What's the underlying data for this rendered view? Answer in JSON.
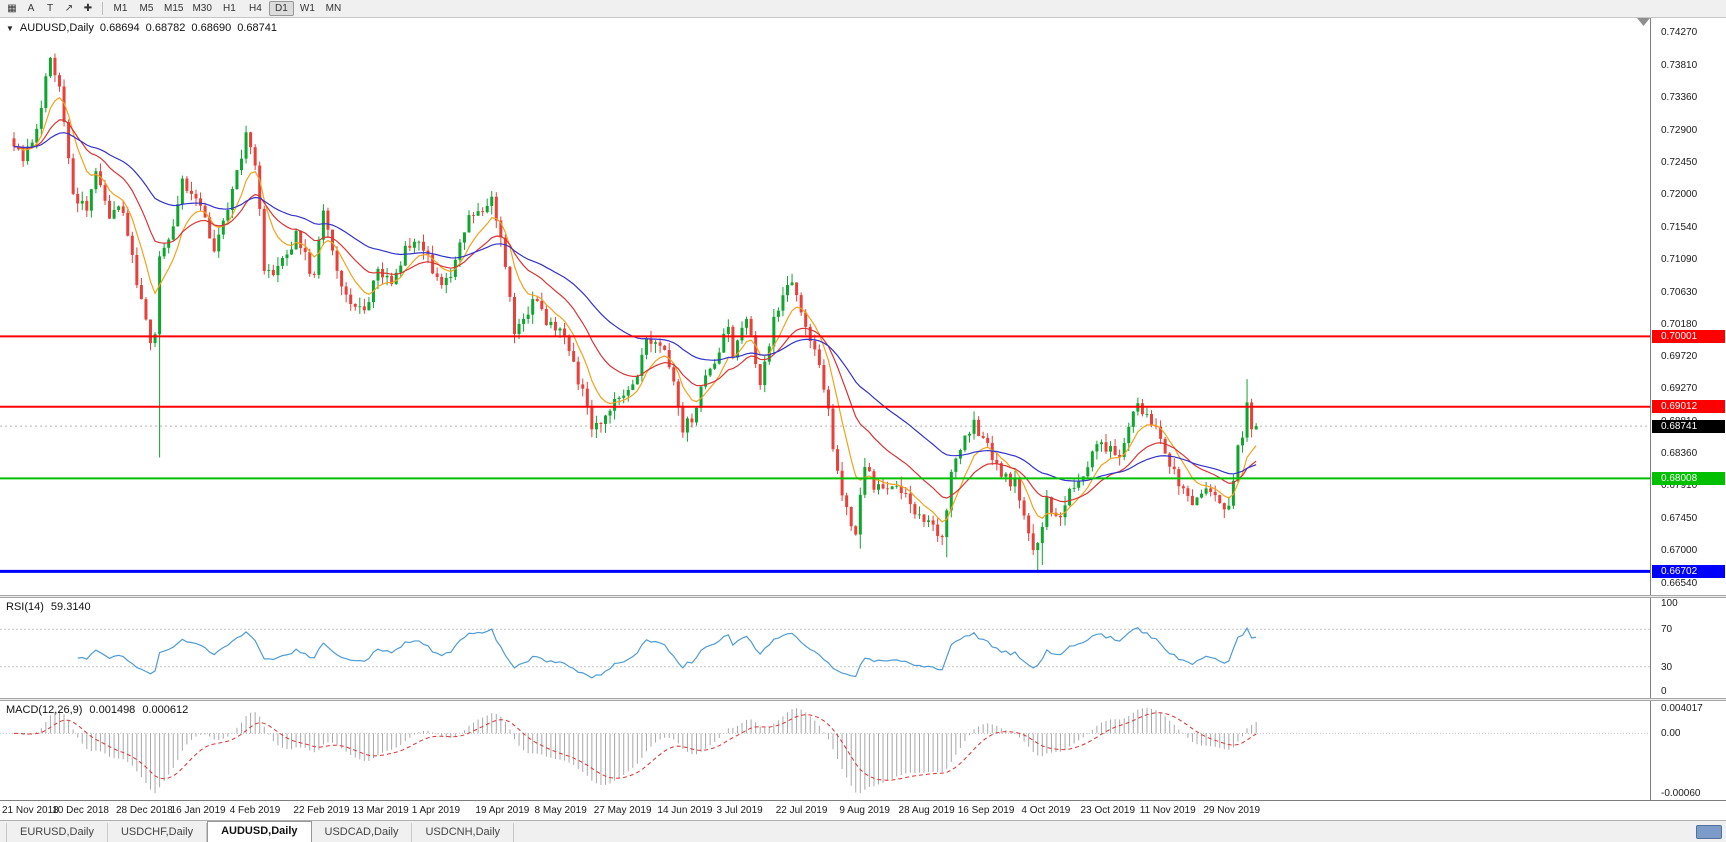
{
  "toolbar": {
    "icons": [
      {
        "name": "chart-grid-icon",
        "glyph": "▦"
      },
      {
        "name": "cursor-icon",
        "glyph": "A"
      },
      {
        "name": "text-tool-icon",
        "glyph": "T"
      },
      {
        "name": "trendline-icon",
        "glyph": "↗"
      },
      {
        "name": "crosshair-icon",
        "glyph": "✚"
      }
    ],
    "timeframes": [
      "M1",
      "M5",
      "M15",
      "M30",
      "H1",
      "H4",
      "D1",
      "W1",
      "MN"
    ],
    "active_timeframe": "D1"
  },
  "chart": {
    "dropdown_icon": "▼",
    "symbol_label": "AUDUSD,Daily",
    "open": "0.68694",
    "high": "0.68782",
    "low": "0.68690",
    "close": "0.68741"
  },
  "chart_data": {
    "type": "candlestick",
    "symbol": "AUDUSD",
    "timeframe": "Daily",
    "candle_count": 274,
    "colors": {
      "bull": "#0FA52E",
      "bear": "#E8403A"
    },
    "price_axis": {
      "labels": [
        "0.74270",
        "0.73810",
        "0.73360",
        "0.72900",
        "0.72450",
        "0.72000",
        "0.71540",
        "0.71090",
        "0.70630",
        "0.70180",
        "0.69720",
        "0.69270",
        "0.68810",
        "0.68360",
        "0.67910",
        "0.67450",
        "0.67000",
        "0.66540"
      ],
      "max_visible": 0.7447,
      "min_visible": 0.6637
    },
    "date_axis": [
      {
        "label": "21 Nov 2018",
        "i": 2
      },
      {
        "label": "10 Dec 2018",
        "i": 15
      },
      {
        "label": "28 Dec 2018",
        "i": 29
      },
      {
        "label": "16 Jan 2019",
        "i": 41
      },
      {
        "label": "4 Feb 2019",
        "i": 54
      },
      {
        "label": "22 Feb 2019",
        "i": 68
      },
      {
        "label": "13 Mar 2019",
        "i": 81
      },
      {
        "label": "1 Apr 2019",
        "i": 94
      },
      {
        "label": "19 Apr 2019",
        "i": 108
      },
      {
        "label": "8 May 2019",
        "i": 121
      },
      {
        "label": "27 May 2019",
        "i": 134
      },
      {
        "label": "14 Jun 2019",
        "i": 148
      },
      {
        "label": "3 Jul 2019",
        "i": 161
      },
      {
        "label": "22 Jul 2019",
        "i": 174
      },
      {
        "label": "9 Aug 2019",
        "i": 188
      },
      {
        "label": "28 Aug 2019",
        "i": 201
      },
      {
        "label": "16 Sep 2019",
        "i": 214
      },
      {
        "label": "4 Oct 2019",
        "i": 228
      },
      {
        "label": "23 Oct 2019",
        "i": 241
      },
      {
        "label": "11 Nov 2019",
        "i": 254
      },
      {
        "label": "29 Nov 2019",
        "i": 268
      }
    ],
    "price_path": [
      [
        0,
        0.7278
      ],
      [
        3,
        0.7242
      ],
      [
        6,
        0.73
      ],
      [
        9,
        0.7388
      ],
      [
        11,
        0.7352
      ],
      [
        14,
        0.7205
      ],
      [
        17,
        0.7178
      ],
      [
        19,
        0.7228
      ],
      [
        22,
        0.717
      ],
      [
        25,
        0.7182
      ],
      [
        28,
        0.7075
      ],
      [
        30,
        0.7032
      ],
      [
        31,
        0.6992
      ],
      [
        32,
        0.7
      ],
      [
        33,
        0.7112
      ],
      [
        36,
        0.7158
      ],
      [
        38,
        0.7218
      ],
      [
        41,
        0.72
      ],
      [
        43,
        0.7162
      ],
      [
        45,
        0.7122
      ],
      [
        48,
        0.7178
      ],
      [
        51,
        0.7252
      ],
      [
        52,
        0.729
      ],
      [
        54,
        0.7244
      ],
      [
        56,
        0.7098
      ],
      [
        58,
        0.7092
      ],
      [
        61,
        0.7108
      ],
      [
        63,
        0.714
      ],
      [
        67,
        0.7082
      ],
      [
        69,
        0.7172
      ],
      [
        72,
        0.709
      ],
      [
        75,
        0.7042
      ],
      [
        78,
        0.7038
      ],
      [
        81,
        0.7092
      ],
      [
        84,
        0.7072
      ],
      [
        87,
        0.7118
      ],
      [
        90,
        0.7132
      ],
      [
        93,
        0.7092
      ],
      [
        95,
        0.7068
      ],
      [
        98,
        0.7105
      ],
      [
        101,
        0.7162
      ],
      [
        104,
        0.7178
      ],
      [
        106,
        0.7196
      ],
      [
        108,
        0.7148
      ],
      [
        111,
        0.7012
      ],
      [
        113,
        0.7018
      ],
      [
        115,
        0.7052
      ],
      [
        118,
        0.7022
      ],
      [
        121,
        0.7002
      ],
      [
        123,
        0.6985
      ],
      [
        125,
        0.6942
      ],
      [
        128,
        0.6872
      ],
      [
        131,
        0.6888
      ],
      [
        134,
        0.6922
      ],
      [
        137,
        0.6932
      ],
      [
        140,
        0.6988
      ],
      [
        143,
        0.6992
      ],
      [
        145,
        0.6955
      ],
      [
        148,
        0.6872
      ],
      [
        150,
        0.688
      ],
      [
        152,
        0.6925
      ],
      [
        155,
        0.6962
      ],
      [
        158,
        0.7012
      ],
      [
        159,
        0.6968
      ],
      [
        162,
        0.7028
      ],
      [
        165,
        0.6928
      ],
      [
        168,
        0.7022
      ],
      [
        171,
        0.7068
      ],
      [
        172,
        0.7078
      ],
      [
        174,
        0.7042
      ],
      [
        177,
        0.6978
      ],
      [
        180,
        0.6898
      ],
      [
        182,
        0.6802
      ],
      [
        184,
        0.6758
      ],
      [
        186,
        0.6728
      ],
      [
        188,
        0.6812
      ],
      [
        190,
        0.6792
      ],
      [
        193,
        0.6778
      ],
      [
        196,
        0.6788
      ],
      [
        199,
        0.6758
      ],
      [
        202,
        0.6742
      ],
      [
        205,
        0.6722
      ],
      [
        207,
        0.6808
      ],
      [
        210,
        0.6862
      ],
      [
        212,
        0.6878
      ],
      [
        215,
        0.6842
      ],
      [
        218,
        0.6812
      ],
      [
        221,
        0.6792
      ],
      [
        224,
        0.6722
      ],
      [
        225,
        0.6702
      ],
      [
        226,
        0.6712
      ],
      [
        228,
        0.6768
      ],
      [
        231,
        0.6742
      ],
      [
        233,
        0.6788
      ],
      [
        236,
        0.6812
      ],
      [
        239,
        0.6852
      ],
      [
        242,
        0.6838
      ],
      [
        244,
        0.6822
      ],
      [
        247,
        0.6892
      ],
      [
        248,
        0.6912
      ],
      [
        250,
        0.6888
      ],
      [
        253,
        0.6858
      ],
      [
        255,
        0.6822
      ],
      [
        257,
        0.6788
      ],
      [
        260,
        0.6772
      ],
      [
        262,
        0.6788
      ],
      [
        265,
        0.6772
      ],
      [
        268,
        0.676
      ],
      [
        270,
        0.6842
      ],
      [
        271,
        0.6858
      ],
      [
        272,
        0.6902
      ],
      [
        273,
        0.68741
      ]
    ],
    "wick_overrides": {
      "32": 0.683,
      "186": 0.6702,
      "205": 0.669,
      "225": 0.6672,
      "226": 0.6679
    },
    "high_overrides": {
      "271": 0.694
    },
    "last_candle": {
      "o": 0.68694,
      "h": 0.68782,
      "l": 0.6869,
      "c": 0.68741
    },
    "hlines": [
      {
        "value": 0.70001,
        "label": "0.70001",
        "color": "#FF0000",
        "width": 2
      },
      {
        "value": 0.69012,
        "label": "0.69012",
        "color": "#FF0000",
        "width": 2
      },
      {
        "value": 0.68008,
        "label": "0.68008",
        "color": "#00C000",
        "width": 2
      },
      {
        "value": 0.66702,
        "label": "0.66702",
        "color": "#0000FF",
        "width": 3
      }
    ],
    "current_price": {
      "value": 0.68741,
      "label": "0.68741",
      "box_color": "#000000"
    },
    "mas": [
      {
        "period": 8,
        "color": "#F5A11C"
      },
      {
        "period": 20,
        "color": "#D93434"
      },
      {
        "period": 45,
        "color": "#3333CC"
      }
    ],
    "rsi": {
      "title": "RSI(14)",
      "value_text": "59.3140",
      "period": 14,
      "levels": [
        70,
        30
      ],
      "axis_labels": [
        "100",
        "70",
        "30",
        "0"
      ],
      "color": "#4E9CD3"
    },
    "macd": {
      "title": "MACD(12,26,9)",
      "macd_text": "0.001498",
      "signal_text": "0.000612",
      "fast": 12,
      "slow": 26,
      "signal": 9,
      "axis_labels": [
        "0.004017",
        "0.00",
        "-0.00060"
      ],
      "hist_color": "#A8A8A8",
      "signal_color": "#E03030"
    }
  },
  "tabs": {
    "items": [
      "EURUSD,Daily",
      "USDCHF,Daily",
      "AUDUSD,Daily",
      "USDCAD,Daily",
      "USDCNH,Daily"
    ],
    "active": "AUDUSD,Daily"
  }
}
